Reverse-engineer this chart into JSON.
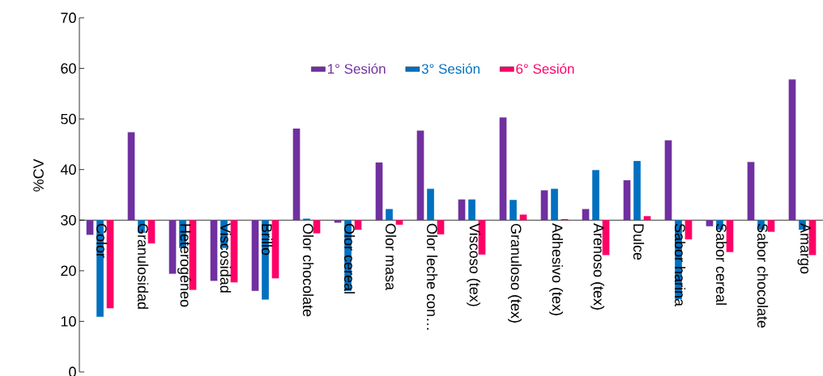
{
  "chart_data": {
    "type": "bar",
    "ylabel": "%CV",
    "categories": [
      "Color",
      "Granulosidad",
      "Heterogéneo",
      "Viscosidad",
      "Brillo",
      "Olor chocolate",
      "Olor cereal",
      "Olor masa",
      "Olor leche con…",
      "Viscoso (tex)",
      "Granuloso (tex)",
      "Adhesivo (tex)",
      "Arenoso (tex)",
      "Dulce",
      "Sabor harina",
      "Sabor cereal",
      "Sabor chocolate",
      "Amargo"
    ],
    "series": [
      {
        "name": "1° Sesión",
        "color": "#7030a0",
        "base": [
          30,
          30,
          30,
          30,
          30,
          30,
          30,
          30,
          30,
          30,
          30,
          30,
          30,
          30,
          30,
          30,
          30,
          30
        ],
        "values": [
          -2.9,
          17.4,
          -10.6,
          -12.0,
          -14.0,
          18.1,
          -0.5,
          11.4,
          17.7,
          4.1,
          20.3,
          5.9,
          2.2,
          7.9,
          15.8,
          -1.2,
          11.5,
          27.8
        ]
      },
      {
        "name": "3° Sesión",
        "color": "#0070c0",
        "base": [
          30,
          30,
          30,
          30,
          30,
          30,
          30,
          30,
          30,
          30,
          30,
          30,
          30,
          30,
          30,
          30,
          30,
          30
        ],
        "values": [
          -19.1,
          -2.5,
          -5.5,
          -5.5,
          -15.7,
          0.3,
          -14.0,
          2.2,
          6.2,
          4.1,
          4.0,
          6.2,
          9.9,
          11.7,
          -15.6,
          -1.9,
          -1.9,
          -1.9
        ]
      },
      {
        "name": "6° Sesión",
        "color": "#ff0066",
        "base": [
          30,
          30,
          30,
          30,
          30,
          30,
          30,
          30,
          30,
          30,
          30,
          30,
          30,
          30,
          30,
          30,
          30,
          30
        ],
        "values": [
          -17.4,
          -4.6,
          -13.8,
          -12.3,
          -11.5,
          -2.6,
          -1.9,
          -0.9,
          -2.8,
          -6.8,
          1.1,
          0.2,
          -6.9,
          0.8,
          -3.8,
          -6.3,
          -2.3,
          -6.9
        ]
      }
    ],
    "ylim": [
      0,
      70
    ],
    "yticks": [
      0,
      10,
      20,
      30,
      40,
      50,
      60,
      70
    ],
    "legend": "top"
  }
}
